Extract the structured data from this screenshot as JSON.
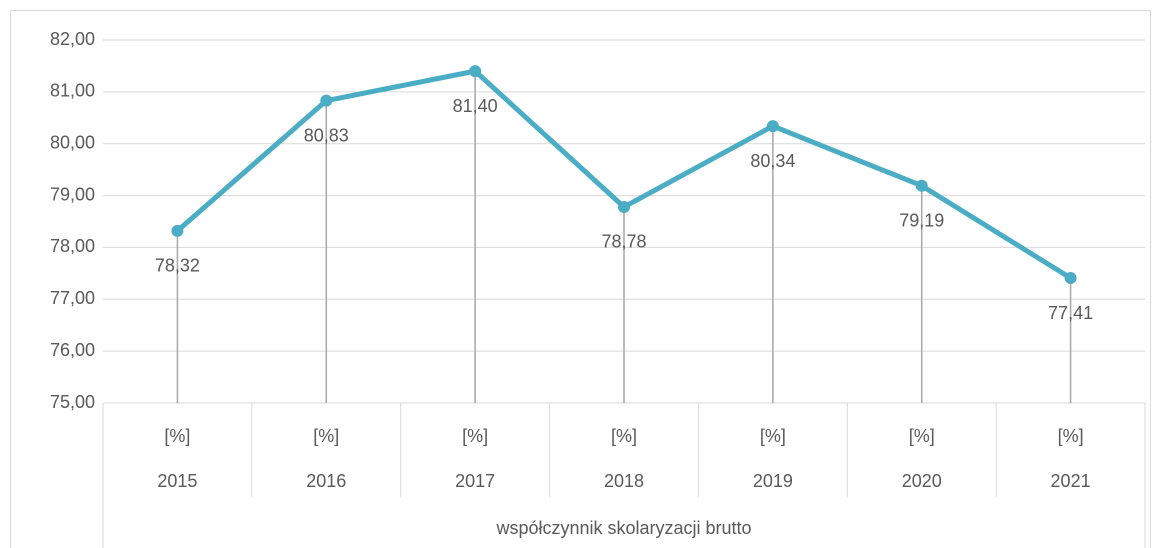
{
  "chart_data": {
    "type": "line",
    "categories": [
      "2015",
      "2016",
      "2017",
      "2018",
      "2019",
      "2020",
      "2021"
    ],
    "subcategories": [
      "[%]",
      "[%]",
      "[%]",
      "[%]",
      "[%]",
      "[%]",
      "[%]"
    ],
    "category_group": "współczynnik skolaryzacji brutto",
    "series": [
      {
        "name": "współczynnik skolaryzacji brutto",
        "color": "#4bacc6",
        "values": [
          78.32,
          80.83,
          81.4,
          78.78,
          80.34,
          79.19,
          77.41
        ],
        "value_labels": [
          "78,32",
          "80,83",
          "81,40",
          "78,78",
          "80,34",
          "79,19",
          "77,41"
        ]
      }
    ],
    "ylim": [
      75,
      82
    ],
    "yticks": [
      {
        "value": 75,
        "label": "75,00"
      },
      {
        "value": 76,
        "label": "76,00"
      },
      {
        "value": 77,
        "label": "77,00"
      },
      {
        "value": 78,
        "label": "78,00"
      },
      {
        "value": 79,
        "label": "79,00"
      },
      {
        "value": 80,
        "label": "80,00"
      },
      {
        "value": 81,
        "label": "81,00"
      },
      {
        "value": 82,
        "label": "82,00"
      }
    ],
    "grid": true,
    "drop_lines": true
  }
}
